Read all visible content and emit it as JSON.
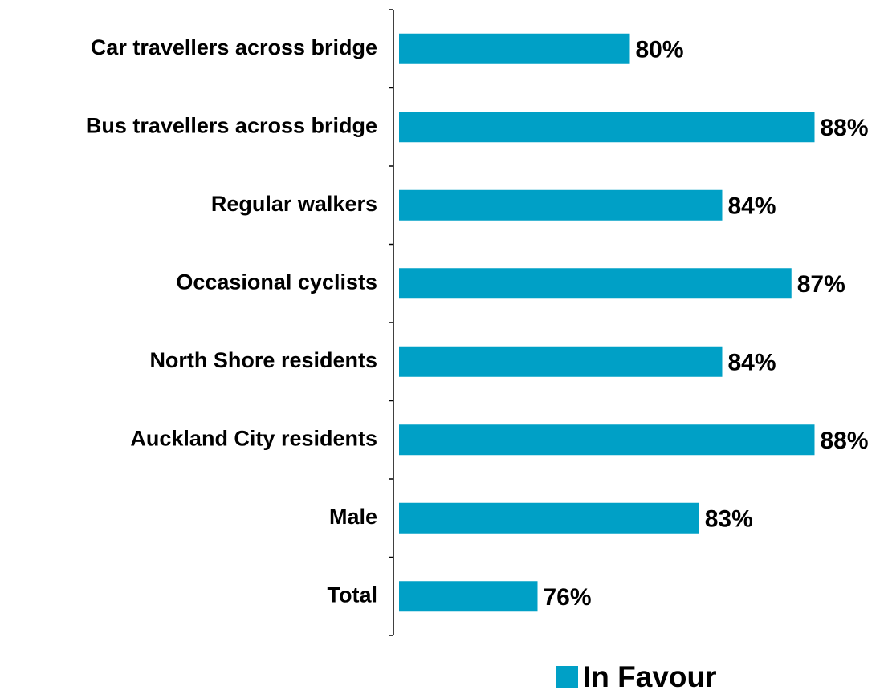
{
  "chart_data": {
    "type": "bar",
    "orientation": "horizontal",
    "categories": [
      "Car travellers across bridge",
      "Bus travellers across bridge",
      "Regular walkers",
      "Occasional cyclists",
      "North Shore residents",
      "Auckland City residents",
      "Male",
      "Total"
    ],
    "series": [
      {
        "name": "In Favour",
        "color": "#00a0c6",
        "values": [
          80,
          88,
          84,
          87,
          84,
          88,
          83,
          76
        ],
        "value_labels": [
          "80%",
          "88%",
          "84%",
          "87%",
          "84%",
          "88%",
          "83%",
          "76%"
        ]
      }
    ],
    "xlim": [
      70,
      90
    ],
    "legend": "bottom"
  }
}
